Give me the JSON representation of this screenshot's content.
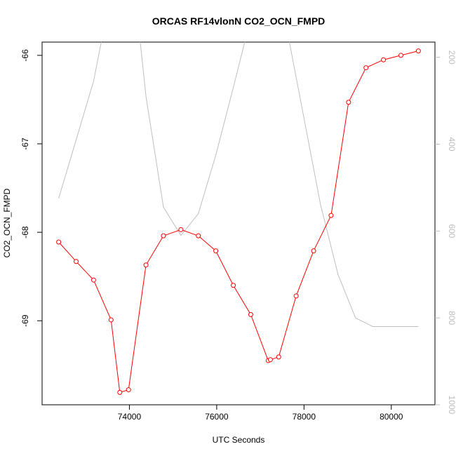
{
  "chart_data": {
    "type": "line",
    "title": "ORCAS RF14vlonN CO2_OCN_FMPD",
    "xlabel": "UTC Seconds",
    "ylabel": "CO2_OCN_FMPD",
    "xlim": [
      72000,
      81000
    ],
    "ylim": [
      -69.95,
      -65.85
    ],
    "y2lim": [
      1000,
      165
    ],
    "x_ticks": [
      74000,
      76000,
      78000,
      80000
    ],
    "y_ticks": [
      -69,
      -68,
      -67,
      -66
    ],
    "y2_ticks": [
      200,
      400,
      600,
      800,
      1000
    ],
    "grid": false,
    "colors": {
      "primary": "#ff0000",
      "secondary": "#bebebe"
    },
    "series": [
      {
        "axis": "left",
        "style": "line+circles",
        "x": [
          72380,
          72780,
          73180,
          73580,
          73780,
          73980,
          74380,
          74780,
          75180,
          75580,
          75980,
          76380,
          76780,
          77180,
          77230,
          77420,
          77820,
          78220,
          78620,
          79020,
          79420,
          79820,
          80220,
          80620
        ],
        "values": [
          -68.11,
          -68.33,
          -68.54,
          -68.99,
          -69.81,
          -69.78,
          -68.37,
          -68.04,
          -67.97,
          -68.04,
          -68.21,
          -68.6,
          -68.93,
          -69.45,
          -69.44,
          -69.41,
          -68.72,
          -68.21,
          -67.81,
          -66.53,
          -66.14,
          -66.05,
          -66.0,
          -65.95
        ]
      },
      {
        "axis": "right",
        "style": "line",
        "x": [
          72380,
          72780,
          73180,
          73580,
          73980,
          74380,
          74780,
          75180,
          75580,
          75980,
          76380,
          76780,
          77180,
          77580,
          77980,
          78380,
          78780,
          79180,
          79580,
          80000,
          80620
        ],
        "values": [
          525,
          390,
          255,
          50,
          -90,
          290,
          545,
          610,
          560,
          425,
          270,
          110,
          -90,
          120,
          330,
          540,
          700,
          800,
          820,
          820,
          820
        ]
      }
    ]
  }
}
